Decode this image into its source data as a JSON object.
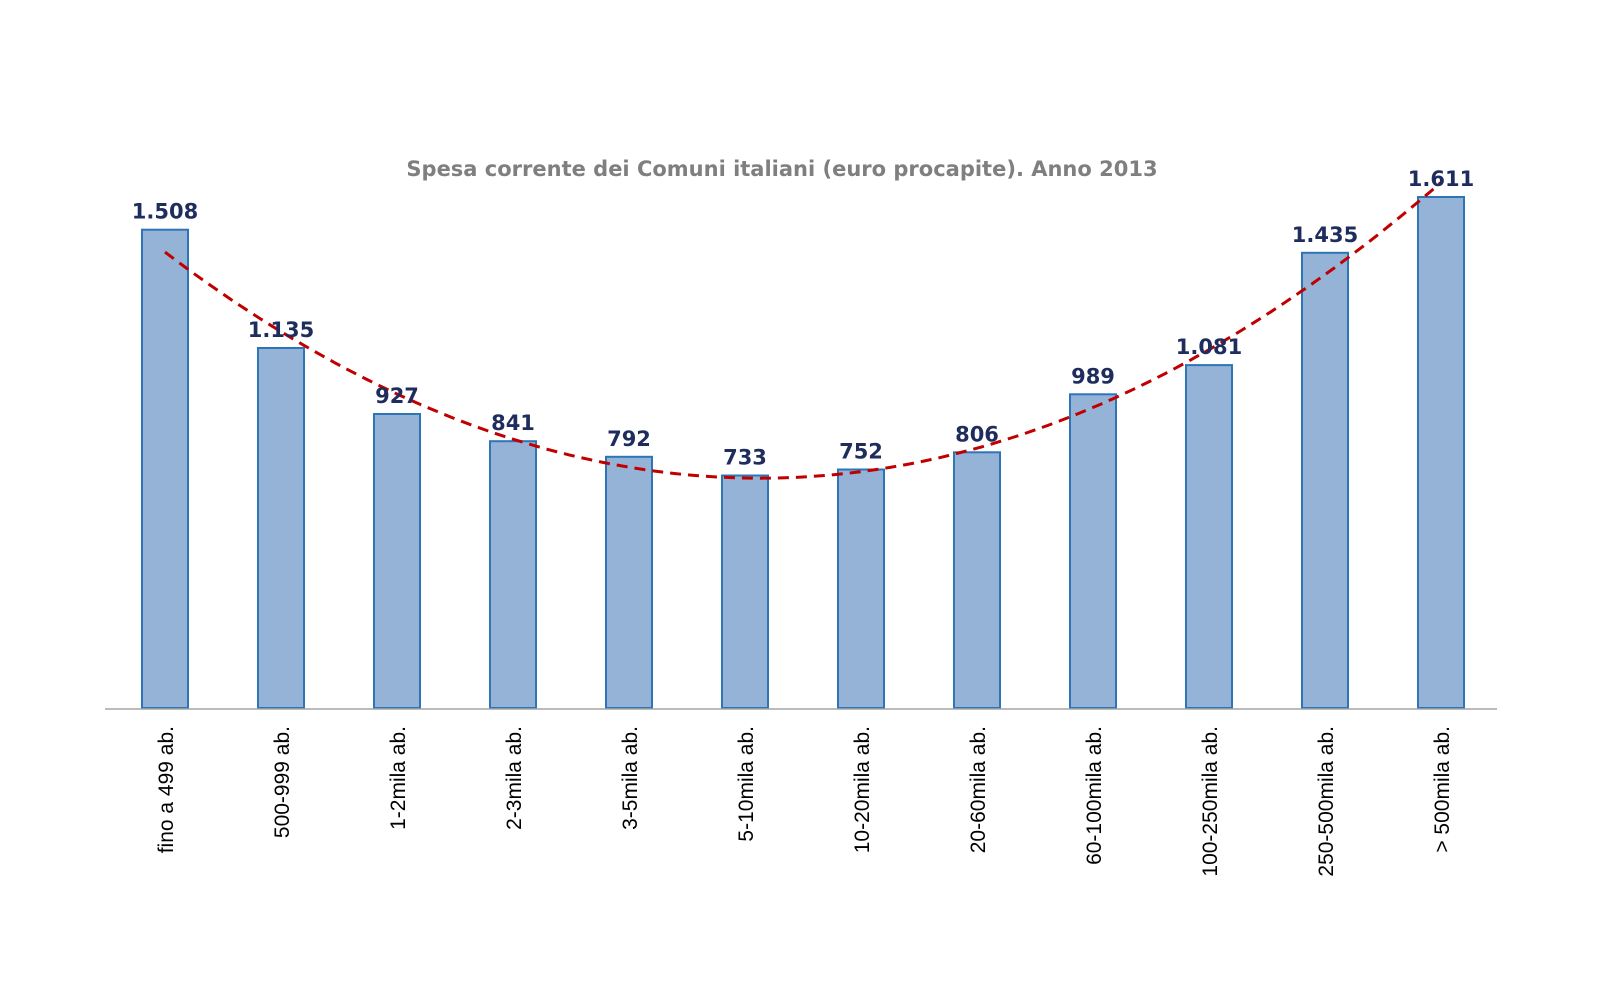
{
  "chart_data": {
    "type": "bar",
    "title": "Spesa corrente dei Comuni italiani (euro procapite). Anno 2013",
    "categories": [
      "fino a 499 ab.",
      "500-999 ab.",
      "1-2mila ab.",
      "2-3mila ab.",
      "3-5mila ab.",
      "5-10mila ab.",
      "10-20mila ab.",
      "20-60mila ab.",
      "60-100mila ab.",
      "100-250mila ab.",
      "250-500mila ab.",
      "> 500mila ab."
    ],
    "values": [
      1508,
      1135,
      927,
      841,
      792,
      733,
      752,
      806,
      989,
      1081,
      1435,
      1611
    ],
    "value_labels": [
      "1.508",
      "1.135",
      "927",
      "841",
      "792",
      "733",
      "752",
      "806",
      "989",
      "1.081",
      "1.435",
      "1.611"
    ],
    "ylim": [
      0,
      1611
    ],
    "grid": false,
    "legend": "none",
    "trendline": "polynomial",
    "colors": {
      "bar_fill": "#95b3d7",
      "bar_stroke": "#2e75b6",
      "trendline": "#c00000",
      "value_label": "#1f2d5e",
      "title": "#7f7f7f"
    }
  }
}
